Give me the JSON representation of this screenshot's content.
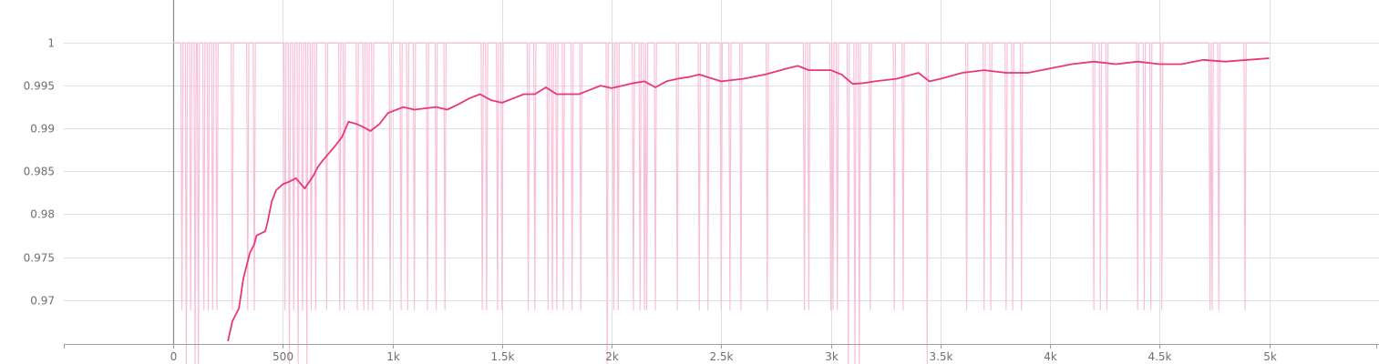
{
  "chart_data": {
    "type": "line",
    "title": "",
    "xlabel": "",
    "ylabel": "",
    "xlim": [
      -500,
      5600
    ],
    "ylim": [
      0.9653,
      1.0045
    ],
    "grid": true,
    "colors": {
      "smoothed": "#e8377a",
      "raw": "#f8bfd8"
    },
    "x_ticks": [
      {
        "value": 0,
        "label": "0"
      },
      {
        "value": 500,
        "label": "500"
      },
      {
        "value": 1000,
        "label": "1k"
      },
      {
        "value": 1500,
        "label": "1.5k"
      },
      {
        "value": 2000,
        "label": "2k"
      },
      {
        "value": 2500,
        "label": "2.5k"
      },
      {
        "value": 3000,
        "label": "3k"
      },
      {
        "value": 3500,
        "label": "3.5k"
      },
      {
        "value": 4000,
        "label": "4k"
      },
      {
        "value": 4500,
        "label": "4.5k"
      },
      {
        "value": 5000,
        "label": "5k"
      }
    ],
    "y_ticks": [
      {
        "value": 1,
        "label": "1"
      },
      {
        "value": 0.995,
        "label": "0.995"
      },
      {
        "value": 0.99,
        "label": "0.99"
      },
      {
        "value": 0.985,
        "label": "0.985"
      },
      {
        "value": 0.98,
        "label": "0.98"
      },
      {
        "value": 0.975,
        "label": "0.975"
      },
      {
        "value": 0.97,
        "label": "0.97"
      }
    ],
    "series": [
      {
        "role": "smoothed",
        "x": [
          250,
          270,
          300,
          320,
          350,
          370,
          380,
          420,
          430,
          450,
          470,
          500,
          530,
          560,
          600,
          640,
          660,
          680,
          700,
          740,
          770,
          800,
          840,
          880,
          900,
          940,
          980,
          1050,
          1100,
          1200,
          1250,
          1300,
          1350,
          1400,
          1450,
          1500,
          1550,
          1600,
          1650,
          1700,
          1750,
          1800,
          1850,
          1900,
          1950,
          2000,
          2050,
          2100,
          2150,
          2200,
          2250,
          2300,
          2350,
          2400,
          2500,
          2600,
          2700,
          2800,
          2850,
          2900,
          3000,
          3050,
          3100,
          3150,
          3200,
          3300,
          3400,
          3450,
          3500,
          3600,
          3700,
          3800,
          3900,
          4000,
          4100,
          4200,
          4300,
          4400,
          4500,
          4600,
          4700,
          4800,
          4900,
          5000
        ],
        "y": [
          0.9652,
          0.9675,
          0.969,
          0.9725,
          0.9755,
          0.9765,
          0.9775,
          0.978,
          0.979,
          0.9815,
          0.9828,
          0.9835,
          0.9838,
          0.9842,
          0.983,
          0.9845,
          0.9855,
          0.9862,
          0.9868,
          0.988,
          0.989,
          0.9908,
          0.9905,
          0.99,
          0.9897,
          0.9905,
          0.9918,
          0.9925,
          0.9922,
          0.9925,
          0.9922,
          0.9928,
          0.9935,
          0.994,
          0.9933,
          0.993,
          0.9935,
          0.994,
          0.994,
          0.9948,
          0.994,
          0.994,
          0.994,
          0.9945,
          0.995,
          0.9947,
          0.995,
          0.9953,
          0.9955,
          0.9948,
          0.9955,
          0.9958,
          0.996,
          0.9963,
          0.9955,
          0.9958,
          0.9963,
          0.997,
          0.9973,
          0.9968,
          0.9968,
          0.9963,
          0.9952,
          0.9953,
          0.9955,
          0.9958,
          0.9965,
          0.9955,
          0.9958,
          0.9965,
          0.9968,
          0.9965,
          0.9965,
          0.997,
          0.9975,
          0.9978,
          0.9975,
          0.9978,
          0.9975,
          0.9975,
          0.998,
          0.9978,
          0.998,
          0.9982
        ]
      },
      {
        "role": "raw",
        "baseline": 1,
        "dips": [
          {
            "x": 40,
            "y": 0.9688
          },
          {
            "x": 60,
            "y": 0.962
          },
          {
            "x": 80,
            "y": 0.9688
          },
          {
            "x": 100,
            "y": 0.962
          },
          {
            "x": 115,
            "y": 0.962
          },
          {
            "x": 140,
            "y": 0.9688
          },
          {
            "x": 160,
            "y": 0.9688
          },
          {
            "x": 180,
            "y": 0.9688
          },
          {
            "x": 200,
            "y": 0.9688
          },
          {
            "x": 270,
            "y": 0.9688
          },
          {
            "x": 340,
            "y": 0.9688
          },
          {
            "x": 370,
            "y": 0.9688
          },
          {
            "x": 510,
            "y": 0.9688
          },
          {
            "x": 530,
            "y": 0.962
          },
          {
            "x": 550,
            "y": 0.9688
          },
          {
            "x": 570,
            "y": 0.962
          },
          {
            "x": 590,
            "y": 0.9688
          },
          {
            "x": 610,
            "y": 0.962
          },
          {
            "x": 630,
            "y": 0.9688
          },
          {
            "x": 650,
            "y": 0.9688
          },
          {
            "x": 700,
            "y": 0.9688
          },
          {
            "x": 760,
            "y": 0.9688
          },
          {
            "x": 780,
            "y": 0.9688
          },
          {
            "x": 840,
            "y": 0.9688
          },
          {
            "x": 870,
            "y": 0.9688
          },
          {
            "x": 890,
            "y": 0.9688
          },
          {
            "x": 910,
            "y": 0.9688
          },
          {
            "x": 990,
            "y": 0.9688
          },
          {
            "x": 1040,
            "y": 0.9688
          },
          {
            "x": 1070,
            "y": 0.9688
          },
          {
            "x": 1100,
            "y": 0.9688
          },
          {
            "x": 1160,
            "y": 0.9688
          },
          {
            "x": 1200,
            "y": 0.9688
          },
          {
            "x": 1240,
            "y": 0.9688
          },
          {
            "x": 1410,
            "y": 0.9688
          },
          {
            "x": 1430,
            "y": 0.9688
          },
          {
            "x": 1480,
            "y": 0.9688
          },
          {
            "x": 1500,
            "y": 0.9688
          },
          {
            "x": 1620,
            "y": 0.9688
          },
          {
            "x": 1650,
            "y": 0.9688
          },
          {
            "x": 1710,
            "y": 0.9688
          },
          {
            "x": 1730,
            "y": 0.9688
          },
          {
            "x": 1750,
            "y": 0.9688
          },
          {
            "x": 1780,
            "y": 0.9688
          },
          {
            "x": 1820,
            "y": 0.9688
          },
          {
            "x": 1860,
            "y": 0.9688
          },
          {
            "x": 1980,
            "y": 0.962
          },
          {
            "x": 2010,
            "y": 0.9688
          },
          {
            "x": 2030,
            "y": 0.9688
          },
          {
            "x": 2100,
            "y": 0.9688
          },
          {
            "x": 2130,
            "y": 0.9688
          },
          {
            "x": 2150,
            "y": 0.9688
          },
          {
            "x": 2160,
            "y": 0.9688
          },
          {
            "x": 2200,
            "y": 0.9688
          },
          {
            "x": 2300,
            "y": 0.9688
          },
          {
            "x": 2400,
            "y": 0.9688
          },
          {
            "x": 2440,
            "y": 0.9688
          },
          {
            "x": 2500,
            "y": 0.9688
          },
          {
            "x": 2540,
            "y": 0.9688
          },
          {
            "x": 2590,
            "y": 0.9688
          },
          {
            "x": 2710,
            "y": 0.9688
          },
          {
            "x": 2880,
            "y": 0.9688
          },
          {
            "x": 2900,
            "y": 0.9688
          },
          {
            "x": 3000,
            "y": 0.9688
          },
          {
            "x": 3010,
            "y": 0.9688
          },
          {
            "x": 3030,
            "y": 0.9688
          },
          {
            "x": 3080,
            "y": 0.962
          },
          {
            "x": 3110,
            "y": 0.962
          },
          {
            "x": 3130,
            "y": 0.962
          },
          {
            "x": 3180,
            "y": 0.9688
          },
          {
            "x": 3290,
            "y": 0.9688
          },
          {
            "x": 3330,
            "y": 0.9688
          },
          {
            "x": 3440,
            "y": 0.962
          },
          {
            "x": 3620,
            "y": 0.9688
          },
          {
            "x": 3700,
            "y": 0.9688
          },
          {
            "x": 3730,
            "y": 0.9688
          },
          {
            "x": 3800,
            "y": 0.9688
          },
          {
            "x": 3830,
            "y": 0.9688
          },
          {
            "x": 3870,
            "y": 0.9688
          },
          {
            "x": 4200,
            "y": 0.9688
          },
          {
            "x": 4230,
            "y": 0.9688
          },
          {
            "x": 4260,
            "y": 0.9688
          },
          {
            "x": 4400,
            "y": 0.9688
          },
          {
            "x": 4430,
            "y": 0.9688
          },
          {
            "x": 4460,
            "y": 0.9688
          },
          {
            "x": 4510,
            "y": 0.9688
          },
          {
            "x": 4730,
            "y": 0.9688
          },
          {
            "x": 4740,
            "y": 0.9688
          },
          {
            "x": 4770,
            "y": 0.9688
          },
          {
            "x": 4890,
            "y": 0.9688
          }
        ]
      }
    ]
  }
}
